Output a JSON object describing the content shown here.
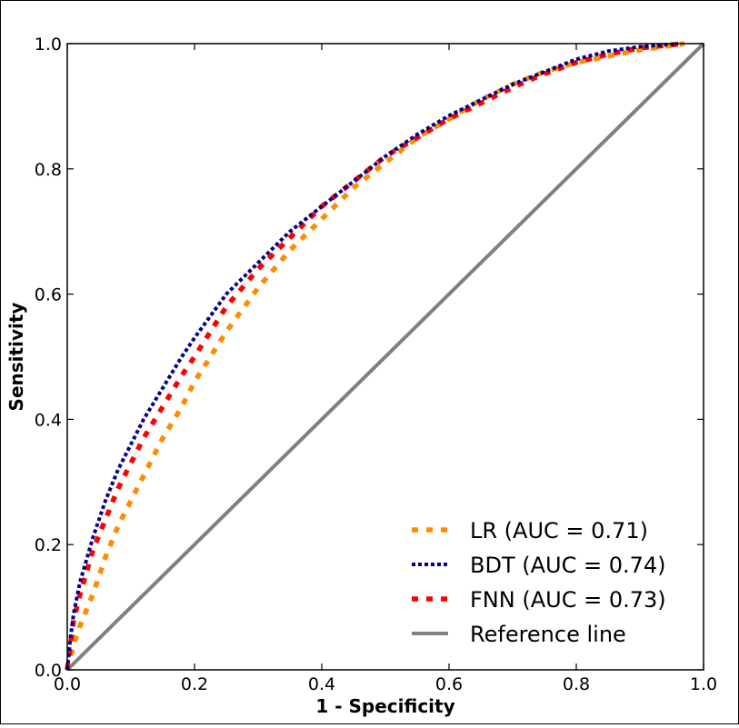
{
  "chart_data": {
    "type": "line",
    "title": "",
    "xlabel": "1 - Specificity",
    "ylabel": "Sensitivity",
    "xlim": [
      0.0,
      1.0
    ],
    "ylim": [
      0.0,
      1.0
    ],
    "xticks": [
      "0.0",
      "0.2",
      "0.4",
      "0.6",
      "0.8",
      "1.0"
    ],
    "yticks": [
      "0.0",
      "0.2",
      "0.4",
      "0.6",
      "0.8",
      "1.0"
    ],
    "grid": false,
    "legend_position": "bottom-right",
    "series": [
      {
        "name": "LR (AUC = 0.71)",
        "color": "#ff8c00",
        "style": "dashed",
        "x": [
          0.0,
          0.01,
          0.02,
          0.04,
          0.06,
          0.08,
          0.1,
          0.12,
          0.15,
          0.18,
          0.2,
          0.25,
          0.3,
          0.35,
          0.4,
          0.45,
          0.5,
          0.55,
          0.6,
          0.65,
          0.7,
          0.75,
          0.8,
          0.85,
          0.9,
          0.95,
          0.97
        ],
        "y": [
          0.0,
          0.04,
          0.07,
          0.12,
          0.18,
          0.23,
          0.27,
          0.31,
          0.37,
          0.42,
          0.46,
          0.54,
          0.61,
          0.67,
          0.72,
          0.77,
          0.81,
          0.85,
          0.88,
          0.91,
          0.935,
          0.955,
          0.97,
          0.98,
          0.99,
          0.997,
          1.0
        ]
      },
      {
        "name": "BDT (AUC = 0.74)",
        "color": "#00008b",
        "style": "dotted",
        "x": [
          0.0,
          0.005,
          0.01,
          0.02,
          0.04,
          0.06,
          0.08,
          0.1,
          0.12,
          0.15,
          0.18,
          0.2,
          0.25,
          0.3,
          0.35,
          0.4,
          0.45,
          0.5,
          0.55,
          0.6,
          0.65,
          0.7,
          0.75,
          0.8,
          0.85,
          0.9,
          0.96
        ],
        "y": [
          0.0,
          0.05,
          0.09,
          0.14,
          0.21,
          0.27,
          0.32,
          0.36,
          0.4,
          0.45,
          0.5,
          0.53,
          0.6,
          0.65,
          0.7,
          0.74,
          0.78,
          0.82,
          0.855,
          0.885,
          0.91,
          0.935,
          0.955,
          0.975,
          0.988,
          0.995,
          1.0
        ]
      },
      {
        "name": "FNN (AUC = 0.73)",
        "color": "#ff0000",
        "style": "dashed",
        "x": [
          0.0,
          0.005,
          0.01,
          0.02,
          0.04,
          0.06,
          0.08,
          0.1,
          0.12,
          0.15,
          0.18,
          0.2,
          0.25,
          0.3,
          0.35,
          0.4,
          0.45,
          0.5,
          0.55,
          0.6,
          0.65,
          0.7,
          0.75,
          0.8,
          0.85,
          0.9,
          0.97
        ],
        "y": [
          0.0,
          0.04,
          0.08,
          0.12,
          0.19,
          0.24,
          0.29,
          0.33,
          0.37,
          0.42,
          0.47,
          0.5,
          0.58,
          0.64,
          0.69,
          0.74,
          0.78,
          0.82,
          0.85,
          0.88,
          0.905,
          0.93,
          0.952,
          0.97,
          0.983,
          0.993,
          1.0
        ]
      },
      {
        "name": "Reference line",
        "color": "#808080",
        "style": "solid",
        "x": [
          0.0,
          1.0
        ],
        "y": [
          0.0,
          1.0
        ]
      }
    ]
  }
}
